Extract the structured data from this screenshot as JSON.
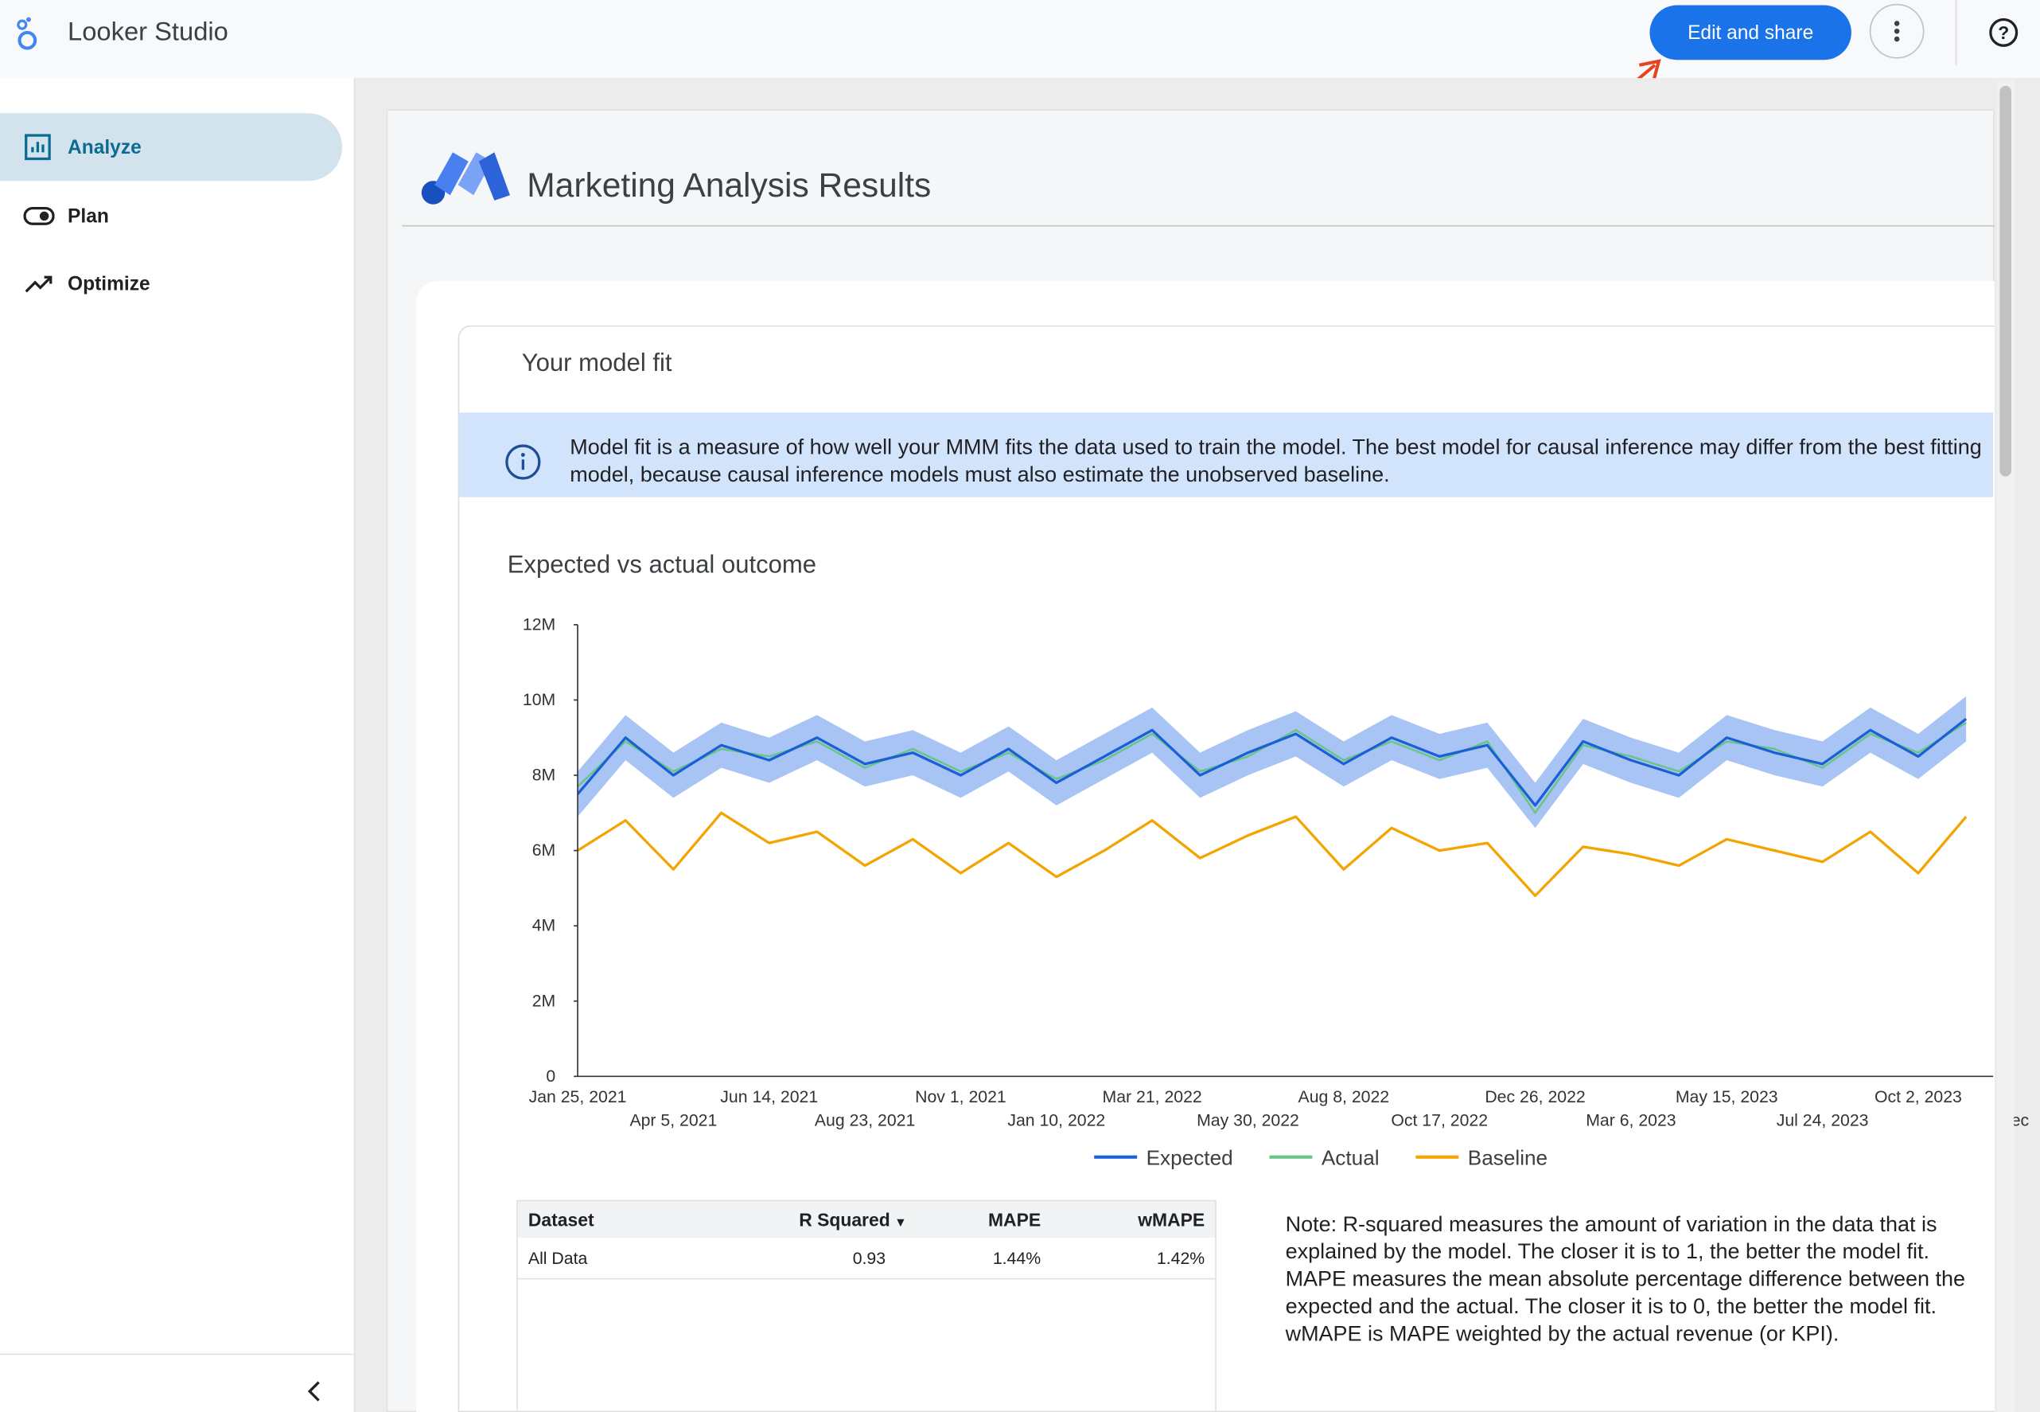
{
  "app": {
    "name": "Looker Studio",
    "button": "Edit and share"
  },
  "nav": [
    "Analyze",
    "Plan",
    "Optimize"
  ],
  "report": {
    "title": "Marketing Analysis Results",
    "section": "Your model fit",
    "info": "Model fit is a measure of how well your MMM fits the data used to train the model. The best model for causal inference may differ from the best fitting model, because causal inference models must also estimate the unobserved baseline."
  },
  "chart_data": {
    "type": "line",
    "title": "Expected vs actual outcome",
    "categories": [
      "Jan 25, 2021",
      null,
      "Apr 5, 2021",
      null,
      "Jun 14, 2021",
      null,
      "Aug 23, 2021",
      null,
      "Nov 1, 2021",
      null,
      "Jan 10, 2022",
      null,
      "Mar 21, 2022",
      null,
      "May 30, 2022",
      null,
      "Aug 8, 2022",
      null,
      "Oct 17, 2022",
      null,
      "Dec 26, 2022",
      null,
      "Mar 6, 2023",
      null,
      "May 15, 2023",
      null,
      "Jul 24, 2023",
      null,
      "Oct 2, 2023",
      null,
      "Dec"
    ],
    "series": [
      {
        "name": "Expected",
        "color": "#1a5fd6",
        "values": [
          7.5,
          9.0,
          8.0,
          8.8,
          8.4,
          9.0,
          8.3,
          8.6,
          8.0,
          8.7,
          7.8,
          8.5,
          9.2,
          8.0,
          8.6,
          9.1,
          8.3,
          9.0,
          8.5,
          8.8,
          7.2,
          8.9,
          8.4,
          8.0,
          9.0,
          8.6,
          8.3,
          9.2,
          8.5,
          9.5,
          null
        ]
      },
      {
        "name": "Actual",
        "color": "#6cc48a",
        "values": [
          7.7,
          8.9,
          8.1,
          8.7,
          8.5,
          8.9,
          8.2,
          8.7,
          8.1,
          8.6,
          7.9,
          8.4,
          9.1,
          8.1,
          8.5,
          9.2,
          8.4,
          8.9,
          8.4,
          8.9,
          7.0,
          8.8,
          8.5,
          8.1,
          8.9,
          8.7,
          8.2,
          9.1,
          8.6,
          9.4,
          null
        ]
      },
      {
        "name": "Baseline",
        "color": "#f4a400",
        "values": [
          6.0,
          6.8,
          5.5,
          7.0,
          6.2,
          6.5,
          5.6,
          6.3,
          5.4,
          6.2,
          5.3,
          6.0,
          6.8,
          5.8,
          6.4,
          6.9,
          5.5,
          6.6,
          6.0,
          6.2,
          4.8,
          6.1,
          5.9,
          5.6,
          6.3,
          6.0,
          5.7,
          6.5,
          5.4,
          6.9,
          null
        ]
      }
    ],
    "interval": {
      "color": "#a8c4f5",
      "upper": [
        8.1,
        9.6,
        8.6,
        9.4,
        9.0,
        9.6,
        8.9,
        9.2,
        8.6,
        9.3,
        8.4,
        9.1,
        9.8,
        8.6,
        9.2,
        9.7,
        8.9,
        9.6,
        9.1,
        9.4,
        7.8,
        9.5,
        9.0,
        8.6,
        9.6,
        9.2,
        8.9,
        9.8,
        9.1,
        10.1,
        null
      ],
      "lower": [
        6.9,
        8.4,
        7.4,
        8.2,
        7.8,
        8.4,
        7.7,
        8.0,
        7.4,
        8.1,
        7.2,
        7.9,
        8.6,
        7.4,
        8.0,
        8.5,
        7.7,
        8.4,
        7.9,
        8.2,
        6.6,
        8.3,
        7.8,
        7.4,
        8.4,
        8.0,
        7.7,
        8.6,
        7.9,
        8.9,
        null
      ]
    },
    "ylim": [
      0,
      12
    ],
    "yticks": [
      0,
      {
        "value": 2,
        "label": "2M"
      },
      {
        "value": 4,
        "label": "4M"
      },
      {
        "value": 6,
        "label": "6M"
      },
      {
        "value": 8,
        "label": "8M"
      },
      {
        "value": 10,
        "label": "10M"
      },
      {
        "value": 12,
        "label": "12M"
      }
    ],
    "grid": false,
    "legend": "bottom"
  },
  "table": {
    "columns": [
      "Dataset",
      "R Squared",
      "MAPE",
      "wMAPE"
    ],
    "rows": [
      [
        "All Data",
        "0.93",
        "1.44%",
        "1.42%"
      ]
    ]
  },
  "note": "Note: R-squared measures the amount of variation in the data that is explained by the model. The closer it is to 1, the better the model fit. MAPE measures the mean absolute percentage difference between the expected and the actual. The closer it is to 0, the better the model fit. wMAPE is MAPE weighted by the actual revenue (or KPI)."
}
